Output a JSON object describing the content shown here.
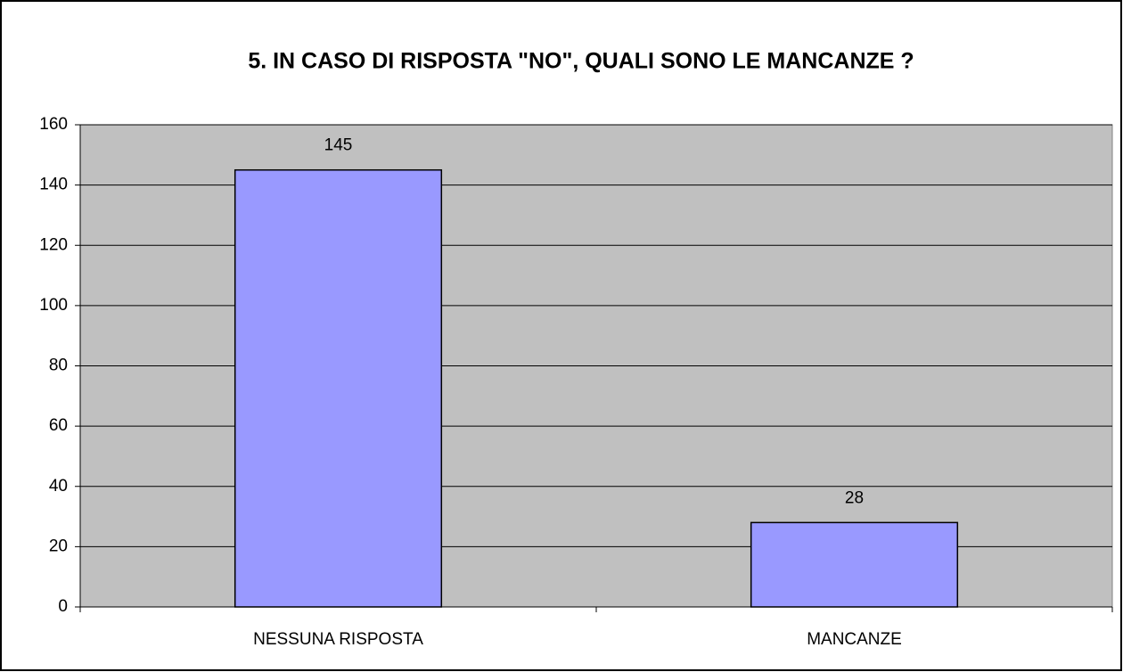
{
  "chart_data": {
    "type": "bar",
    "title": "5. IN CASO DI RISPOSTA \"NO\", QUALI SONO LE MANCANZE ?",
    "categories": [
      "NESSUNA RISPOSTA",
      "MANCANZE"
    ],
    "values": [
      145,
      28
    ],
    "color": "#9999ff",
    "ylim": [
      0,
      160
    ],
    "yticks": [
      0,
      20,
      40,
      60,
      80,
      100,
      120,
      140,
      160
    ],
    "grid": true
  }
}
